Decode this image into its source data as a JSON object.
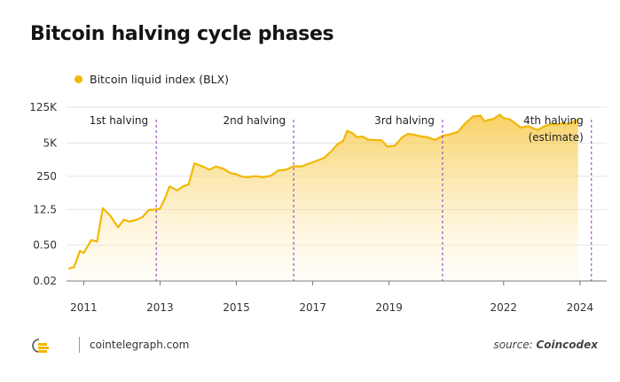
{
  "header": {
    "title": "Bitcoin halving cycle phases"
  },
  "legend": {
    "label": "Bitcoin liquid index (BLX)",
    "color": "#f2b705"
  },
  "footer": {
    "site": "cointelegraph.com",
    "source_prefix": "source: ",
    "source_name": "Coincodex"
  },
  "chart_data": {
    "type": "area",
    "title": "Bitcoin halving cycle phases",
    "xlabel": "",
    "ylabel": "",
    "yscale": "log",
    "x_ticks": [
      2011,
      2013,
      2015,
      2017,
      2019,
      2022,
      2024
    ],
    "y_ticks": [
      "125K",
      "5K",
      "250",
      "12.5",
      "0.50",
      "0.02"
    ],
    "y_tick_values": [
      125000,
      5000,
      250,
      12.5,
      0.5,
      0.02
    ],
    "grid": "horizontal",
    "legend_position": "top-left",
    "line_color": "#f2b705",
    "series": [
      {
        "name": "Bitcoin liquid index (BLX)",
        "points": [
          [
            2010.6,
            0.06
          ],
          [
            2010.75,
            0.07
          ],
          [
            2010.9,
            0.3
          ],
          [
            2011.0,
            0.25
          ],
          [
            2011.2,
            0.8
          ],
          [
            2011.35,
            0.7
          ],
          [
            2011.5,
            14
          ],
          [
            2011.7,
            7
          ],
          [
            2011.9,
            2.5
          ],
          [
            2012.05,
            5
          ],
          [
            2012.2,
            4.2
          ],
          [
            2012.4,
            5
          ],
          [
            2012.55,
            6.5
          ],
          [
            2012.7,
            12
          ],
          [
            2012.9,
            12.5
          ],
          [
            2013.0,
            13.5
          ],
          [
            2013.15,
            40
          ],
          [
            2013.25,
            100
          ],
          [
            2013.45,
            70
          ],
          [
            2013.6,
            100
          ],
          [
            2013.75,
            120
          ],
          [
            2013.9,
            800
          ],
          [
            2014.1,
            620
          ],
          [
            2014.3,
            450
          ],
          [
            2014.45,
            600
          ],
          [
            2014.65,
            500
          ],
          [
            2014.85,
            330
          ],
          [
            2015.0,
            300
          ],
          [
            2015.15,
            240
          ],
          [
            2015.3,
            230
          ],
          [
            2015.5,
            250
          ],
          [
            2015.7,
            230
          ],
          [
            2015.9,
            260
          ],
          [
            2016.1,
            420
          ],
          [
            2016.3,
            450
          ],
          [
            2016.5,
            620
          ],
          [
            2016.7,
            600
          ],
          [
            2016.9,
            780
          ],
          [
            2017.1,
            1000
          ],
          [
            2017.3,
            1300
          ],
          [
            2017.5,
            2500
          ],
          [
            2017.65,
            4500
          ],
          [
            2017.8,
            6000
          ],
          [
            2017.9,
            15000
          ],
          [
            2018.05,
            12000
          ],
          [
            2018.15,
            8500
          ],
          [
            2018.3,
            9000
          ],
          [
            2018.45,
            6800
          ],
          [
            2018.6,
            6500
          ],
          [
            2018.8,
            6400
          ],
          [
            2018.95,
            3600
          ],
          [
            2019.15,
            3900
          ],
          [
            2019.35,
            8500
          ],
          [
            2019.5,
            11500
          ],
          [
            2019.65,
            10500
          ],
          [
            2019.85,
            9000
          ],
          [
            2020.0,
            8500
          ],
          [
            2020.2,
            6500
          ],
          [
            2020.4,
            9500
          ],
          [
            2020.6,
            11000
          ],
          [
            2020.8,
            13500
          ],
          [
            2021.0,
            30000
          ],
          [
            2021.2,
            55000
          ],
          [
            2021.4,
            58000
          ],
          [
            2021.5,
            35000
          ],
          [
            2021.6,
            40000
          ],
          [
            2021.75,
            45000
          ],
          [
            2021.9,
            64000
          ],
          [
            2022.0,
            47000
          ],
          [
            2022.15,
            43000
          ],
          [
            2022.3,
            30000
          ],
          [
            2022.45,
            20000
          ],
          [
            2022.65,
            23000
          ],
          [
            2022.8,
            18000
          ],
          [
            2022.9,
            16500
          ],
          [
            2023.05,
            22000
          ],
          [
            2023.25,
            28000
          ],
          [
            2023.4,
            26000
          ],
          [
            2023.55,
            30000
          ],
          [
            2023.7,
            27000
          ],
          [
            2023.85,
            35000
          ],
          [
            2023.95,
            42000
          ]
        ]
      }
    ],
    "annotations": [
      {
        "label": "1st halving",
        "x": 2012.9
      },
      {
        "label": "2nd halving",
        "x": 2016.5
      },
      {
        "label": "3rd halving",
        "x": 2020.4
      },
      {
        "label": "4th halving",
        "sublabel": "(estimate)",
        "x": 2024.3
      }
    ]
  }
}
